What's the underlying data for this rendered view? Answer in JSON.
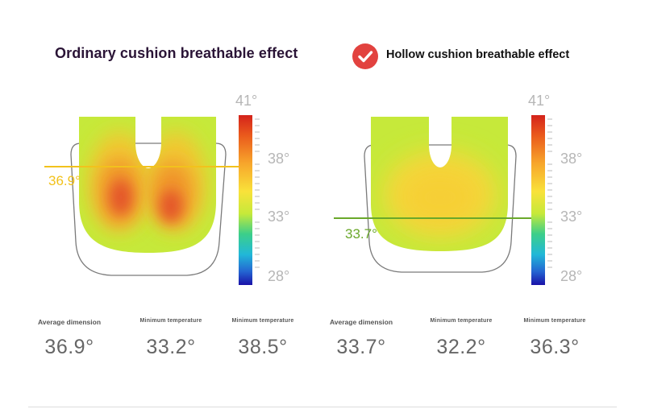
{
  "colors": {
    "hot": "#e8421b",
    "warm": "#f7b62c",
    "neutral": "#c6e93a",
    "cool": "#27c8d5",
    "cold": "#1a1aa3",
    "marker_left": "#f2c21c",
    "marker_right": "#6aa82a",
    "check_badge": "#e2423f"
  },
  "left": {
    "title": "Ordinary cushion breathable effect",
    "marker_value": "36.9°",
    "scale": {
      "top": "41°",
      "mid_high": "38°",
      "mid": "33°",
      "low": "28°"
    },
    "stats": [
      {
        "label": "Average dimension",
        "value": "36.9°"
      },
      {
        "label": "Minimum temperature",
        "value": "33.2°"
      },
      {
        "label": "Minimum temperature",
        "value": "38.5°"
      }
    ]
  },
  "right": {
    "title": "Hollow cushion breathable effect",
    "icon": "check-circle-icon",
    "marker_value": "33.7°",
    "scale": {
      "top": "41°",
      "mid_high": "38°",
      "mid": "33°",
      "low": "28°"
    },
    "stats": [
      {
        "label": "Average dimension",
        "value": "33.7°"
      },
      {
        "label": "Minimum temperature",
        "value": "32.2°"
      },
      {
        "label": "Minimum temperature",
        "value": "36.3°"
      }
    ]
  }
}
